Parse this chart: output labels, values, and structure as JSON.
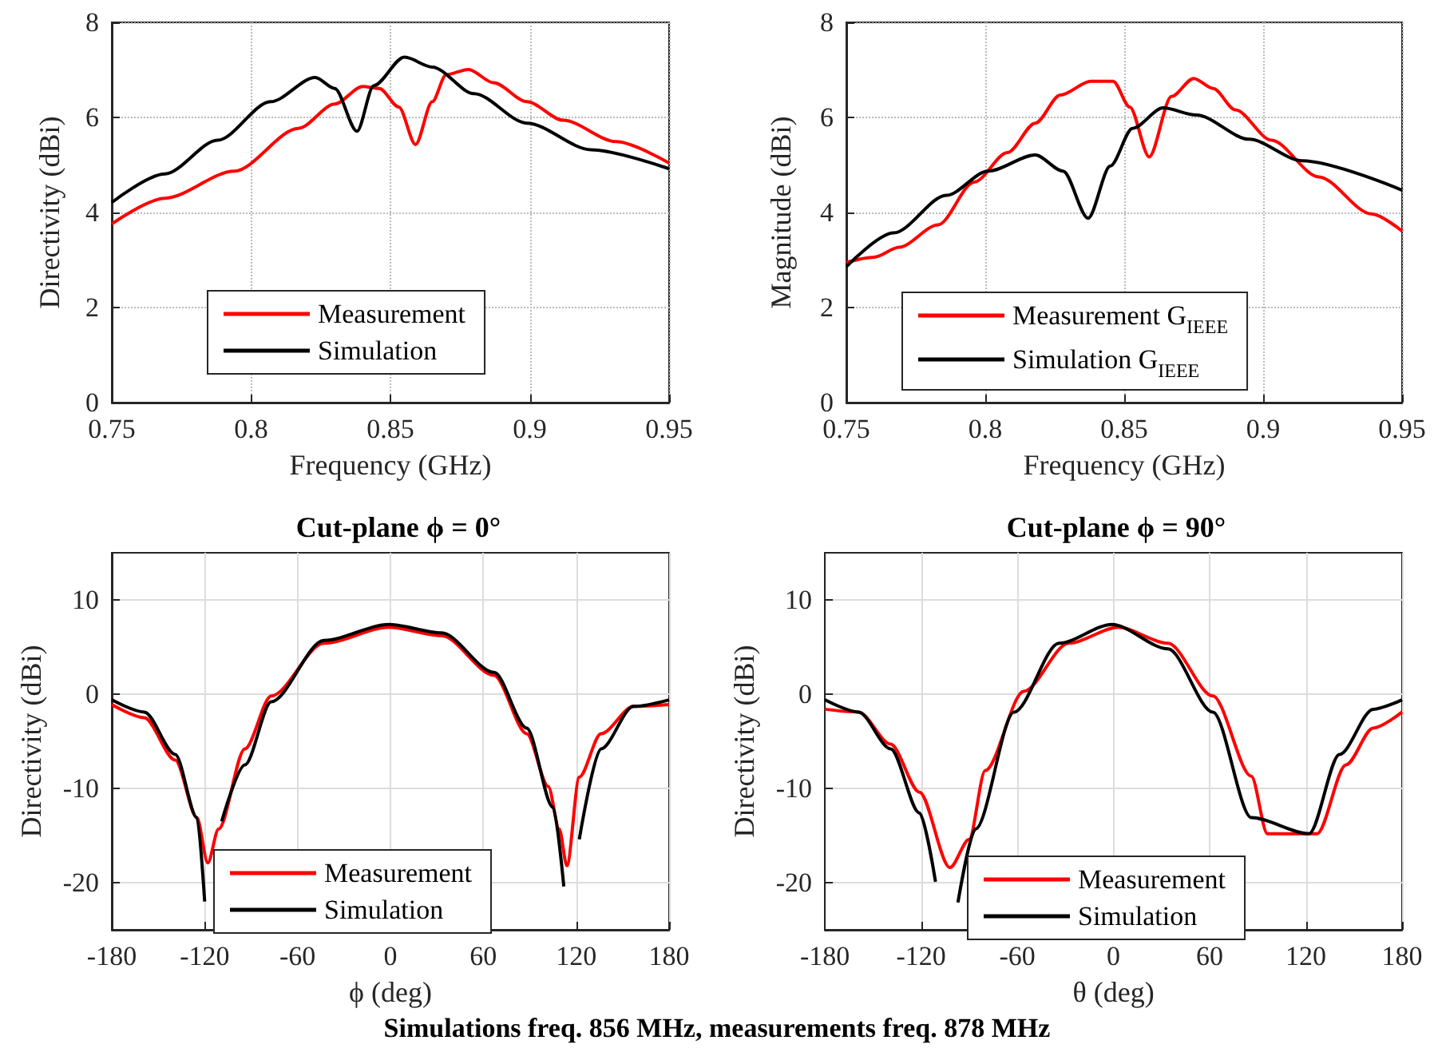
{
  "chart_data": [
    {
      "type": "line",
      "xlabel": "Frequency (GHz)",
      "ylabel": "Directivity (dBi)",
      "xlim": [
        0.75,
        0.95
      ],
      "xticks": [
        0.75,
        0.8,
        0.85,
        0.9,
        0.95
      ],
      "ylim": [
        0,
        8
      ],
      "yticks": [
        0,
        2,
        4,
        6,
        8
      ],
      "grid": true,
      "legend": "bottom",
      "line_style": "solid",
      "series": [
        {
          "name": "Measurement",
          "color": "#ff0000",
          "x": [
            0.75,
            0.769,
            0.794,
            0.817,
            0.83,
            0.84,
            0.846,
            0.853,
            0.859,
            0.865,
            0.87,
            0.878,
            0.887,
            0.899,
            0.912,
            0.931,
            0.95
          ],
          "values": [
            3.76,
            4.3,
            4.87,
            5.77,
            6.28,
            6.65,
            6.61,
            6.22,
            5.43,
            6.33,
            6.9,
            7.01,
            6.73,
            6.33,
            5.94,
            5.49,
            5.04
          ]
        },
        {
          "name": "Simulation",
          "color": "#000000",
          "x": [
            0.75,
            0.769,
            0.788,
            0.807,
            0.823,
            0.83,
            0.838,
            0.844,
            0.855,
            0.865,
            0.88,
            0.899,
            0.922,
            0.95
          ],
          "values": [
            4.21,
            4.81,
            5.52,
            6.33,
            6.84,
            6.61,
            5.71,
            6.67,
            7.27,
            7.06,
            6.5,
            5.88,
            5.32,
            4.92
          ]
        }
      ]
    },
    {
      "type": "line",
      "xlabel": "Frequency (GHz)",
      "ylabel": "Magnitude (dBi)",
      "xlim": [
        0.75,
        0.95
      ],
      "xticks": [
        0.75,
        0.8,
        0.85,
        0.9,
        0.95
      ],
      "ylim": [
        0,
        8
      ],
      "yticks": [
        0,
        2,
        4,
        6,
        8
      ],
      "grid": true,
      "legend": "bottom",
      "line_style": "solid",
      "series": [
        {
          "name": "Measurement G$_{IEEE}$",
          "color": "#ff0000",
          "x": [
            0.75,
            0.76,
            0.769,
            0.783,
            0.796,
            0.808,
            0.818,
            0.827,
            0.838,
            0.846,
            0.852,
            0.859,
            0.867,
            0.875,
            0.882,
            0.89,
            0.903,
            0.92,
            0.939,
            0.95
          ],
          "values": [
            2.95,
            3.06,
            3.27,
            3.74,
            4.64,
            5.26,
            5.88,
            6.47,
            6.76,
            6.76,
            6.22,
            5.17,
            6.44,
            6.82,
            6.61,
            6.16,
            5.52,
            4.75,
            3.97,
            3.61
          ]
        },
        {
          "name": "Simulation G$_{IEEE}$",
          "color": "#000000",
          "x": [
            0.75,
            0.767,
            0.786,
            0.801,
            0.818,
            0.828,
            0.837,
            0.845,
            0.853,
            0.864,
            0.876,
            0.895,
            0.914,
            0.95
          ],
          "values": [
            2.86,
            3.57,
            4.36,
            4.87,
            5.21,
            4.87,
            3.88,
            4.98,
            5.77,
            6.2,
            6.05,
            5.54,
            5.09,
            4.47
          ]
        }
      ]
    },
    {
      "type": "line",
      "title": "Cut-plane ϕ = 0°",
      "xlabel": "ϕ (deg)",
      "ylabel": "Directivity (dBi)",
      "xlim": [
        -180,
        180
      ],
      "xticks": [
        -180,
        -120,
        -60,
        0,
        60,
        120,
        180
      ],
      "ylim": [
        -25,
        15
      ],
      "yticks": [
        -20,
        -10,
        0,
        10
      ],
      "grid": true,
      "legend": "bottom",
      "line_style": "solid",
      "annotations": [
        "Simulations freq. 856 MHz, measurements freq. 878 MHz"
      ],
      "series": [
        {
          "name": "Measurement",
          "color": "#ff0000",
          "x": [
            -180,
            -159,
            -139,
            -125,
            -118,
            -111,
            -94,
            -77,
            -43,
            -1,
            33,
            67,
            88,
            102,
            109,
            114,
            122,
            136,
            157,
            180
          ],
          "values": [
            -1.1,
            -2.5,
            -7,
            -13.1,
            -17.9,
            -14.3,
            -5.8,
            -0.2,
            5.4,
            7.1,
            6.2,
            2,
            -4.2,
            -9.8,
            -14.3,
            -18.2,
            -8.8,
            -4.2,
            -1.3,
            -1.1
          ]
        },
        {
          "name": "Simulation",
          "color": "#000000",
          "x": [
            -180,
            -159,
            -139,
            -125,
            -120,
            -118,
            -115,
            -109,
            -94,
            -77,
            -43,
            -1,
            33,
            67,
            88,
            105,
            112,
            115,
            117.5,
            122,
            136,
            157,
            180
          ],
          "values": [
            -0.6,
            -1.9,
            -6.4,
            -13.1,
            -22,
            null,
            null,
            -13.5,
            -7.5,
            -0.8,
            5.7,
            7.4,
            6.5,
            2.3,
            -3.6,
            -12,
            -20.4,
            null,
            null,
            -15.4,
            -5.8,
            -1.3,
            -0.6
          ]
        }
      ]
    },
    {
      "type": "line",
      "title": "Cut-plane ϕ = 90°",
      "xlabel": "θ (deg)",
      "ylabel": "Directivity (dBi)",
      "xlim": [
        -180,
        180
      ],
      "xticks": [
        -180,
        -120,
        -60,
        0,
        60,
        120,
        180
      ],
      "ylim": [
        -25,
        15
      ],
      "yticks": [
        -20,
        -10,
        0,
        10
      ],
      "grid": true,
      "legend": "bottom",
      "line_style": "solid",
      "series": [
        {
          "name": "Measurement",
          "color": "#ff0000",
          "x": [
            -180,
            -159,
            -139,
            -121,
            -102,
            -90,
            -80,
            -56,
            -28,
            3,
            34,
            62,
            86,
            96,
            127,
            145,
            162,
            180
          ],
          "values": [
            -1.6,
            -1.9,
            -5.3,
            -10.4,
            -18.4,
            -15.4,
            -8.1,
            0.3,
            5.4,
            7.1,
            5.4,
            -0.2,
            -8.7,
            -14.8,
            -14.8,
            -7.5,
            -3.6,
            -1.9
          ]
        },
        {
          "name": "Simulation",
          "color": "#000000",
          "x": [
            -180,
            -159,
            -139,
            -121,
            -111,
            -104,
            -97,
            -86,
            -62,
            -34,
            -1,
            34,
            62,
            86,
            122,
            141,
            162,
            180
          ],
          "values": [
            -0.6,
            -1.9,
            -5.8,
            -12.6,
            -19.9,
            null,
            -22.1,
            -14.3,
            -1.9,
            5.4,
            7.4,
            4.8,
            -1.9,
            -13.1,
            -14.8,
            -6.4,
            -1.6,
            -0.6
          ]
        }
      ]
    }
  ]
}
